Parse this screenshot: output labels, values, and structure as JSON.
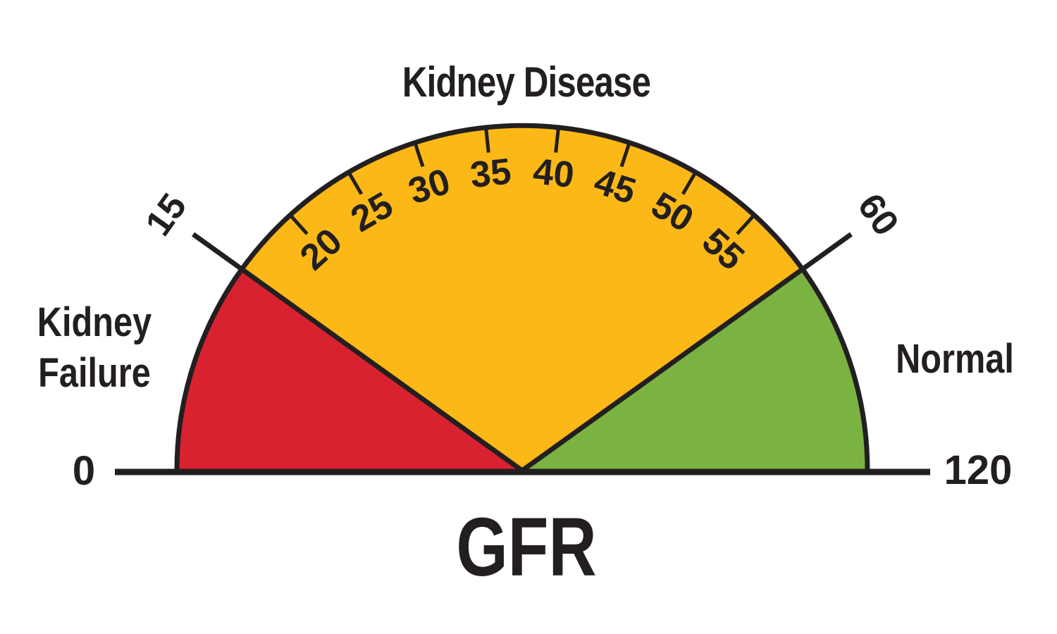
{
  "chart_data": {
    "type": "gauge",
    "title": "GFR",
    "min": 0,
    "max": 120,
    "min_label": "0",
    "max_label": "120",
    "zones": [
      {
        "label": "Kidney Failure",
        "from": 0,
        "to": 15,
        "color": "#d92230"
      },
      {
        "label": "Kidney Disease",
        "from": 15,
        "to": 60,
        "color": "#fbb817"
      },
      {
        "label": "Normal",
        "from": 60,
        "to": 120,
        "color": "#7ab341"
      }
    ],
    "thresholds": [
      {
        "value": 15,
        "label": "15"
      },
      {
        "value": 60,
        "label": "60"
      }
    ],
    "ticks": [
      {
        "value": 20,
        "label": "20"
      },
      {
        "value": 25,
        "label": "25"
      },
      {
        "value": 30,
        "label": "30"
      },
      {
        "value": 35,
        "label": "35"
      },
      {
        "value": 40,
        "label": "40"
      },
      {
        "value": 45,
        "label": "45"
      },
      {
        "value": 50,
        "label": "50"
      },
      {
        "value": 55,
        "label": "55"
      }
    ],
    "layout": {
      "shape": "semicircle gauge, flat baseline at bottom",
      "scale": "values 0-60 span 180deg to 35.7deg linearly; 60-120 compressed into remaining 35.7deg (green)",
      "outline_color": "#231f20",
      "background": "#ffffff"
    }
  }
}
